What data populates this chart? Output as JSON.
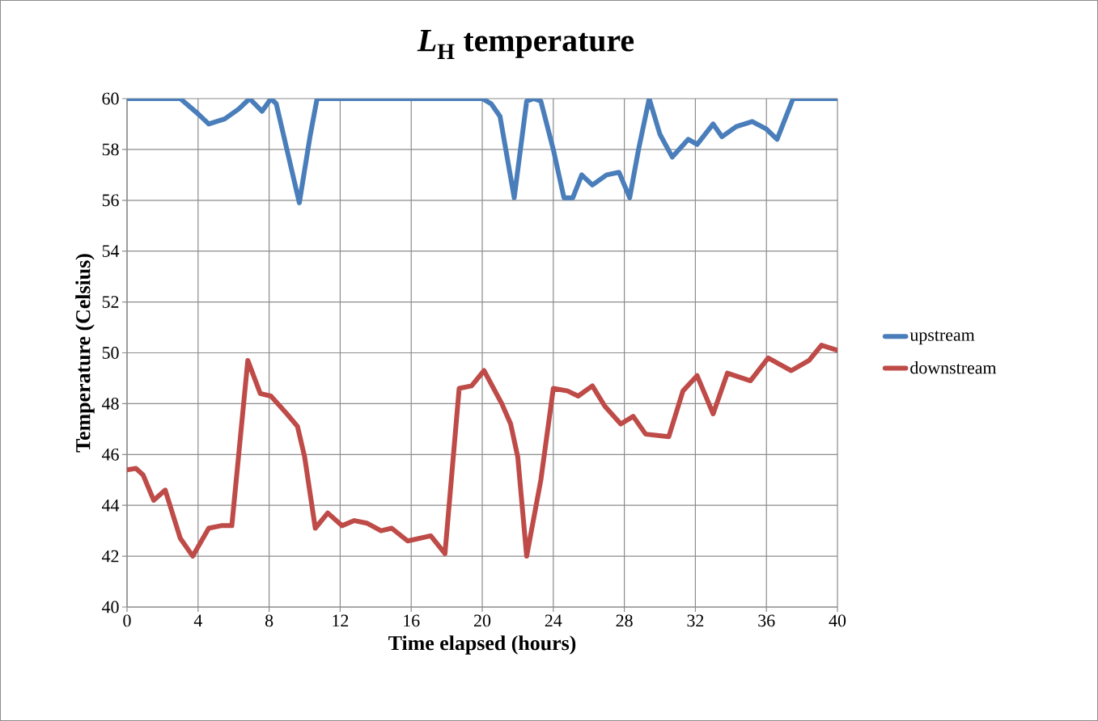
{
  "chart_data": {
    "type": "line",
    "title": "*L*$_{H}$ temperature",
    "xlabel": "Time elapsed (hours)",
    "ylabel": "Temperature (Celsius)",
    "xlim": [
      0,
      40
    ],
    "xticks": [
      0,
      4,
      8,
      12,
      16,
      20,
      24,
      28,
      32,
      36,
      40
    ],
    "ylim": [
      40,
      60
    ],
    "yticks": [
      40,
      42,
      44,
      46,
      48,
      50,
      52,
      54,
      56,
      58,
      60
    ],
    "grid": true,
    "legend": "right",
    "marker": "none",
    "line_style": "solid",
    "series": [
      {
        "name": "upstream",
        "color": "#4a7ebb",
        "x": [
          0,
          2.5,
          3,
          4,
          4.6,
          5.5,
          6.3,
          6.9,
          7.6,
          8.1,
          8.4,
          9,
          9.7,
          10.3,
          10.7,
          11.5,
          20,
          20.5,
          21,
          21.8,
          22.5,
          22.9,
          23.3,
          24,
          24.6,
          25.1,
          25.6,
          26.2,
          27,
          27.7,
          28.3,
          28.8,
          29.4,
          30,
          30.7,
          31.6,
          32.1,
          33,
          33.5,
          34.3,
          35.2,
          36,
          36.6,
          37.5,
          40
        ],
        "values": [
          60,
          60,
          60,
          59.4,
          59,
          59.2,
          59.6,
          60,
          59.5,
          60,
          59.8,
          58,
          55.9,
          58.5,
          60,
          60,
          60,
          59.8,
          59.3,
          56.1,
          59.9,
          60,
          59.9,
          58,
          56.1,
          56.1,
          57,
          56.6,
          57,
          57.1,
          56.1,
          58,
          60,
          58.6,
          57.7,
          58.4,
          58.2,
          59,
          58.5,
          58.9,
          59.1,
          58.8,
          58.4,
          60,
          60
        ]
      },
      {
        "name": "downstream",
        "color": "#be4b48",
        "x": [
          0,
          0.5,
          0.9,
          1.5,
          2.15,
          3,
          3.7,
          4.6,
          5.3,
          5.9,
          6.8,
          7.5,
          8.1,
          9,
          9.6,
          10,
          10.6,
          11.3,
          12.1,
          12.8,
          13.5,
          14.3,
          14.9,
          15.8,
          17.1,
          17.9,
          18.7,
          19.4,
          20.1,
          21.1,
          21.6,
          22,
          22.5,
          23.3,
          24,
          24.8,
          25.4,
          26.2,
          26.9,
          27.8,
          28.5,
          29.2,
          30.5,
          31.3,
          32.1,
          33,
          33.8,
          35.1,
          36.1,
          37.4,
          38.4,
          39.1,
          40
        ],
        "values": [
          45.4,
          45.45,
          45.2,
          44.2,
          44.6,
          42.7,
          42,
          43.1,
          43.2,
          43.2,
          49.7,
          48.4,
          48.3,
          47.6,
          47.1,
          45.9,
          43.1,
          43.7,
          43.2,
          43.4,
          43.3,
          43,
          43.1,
          42.6,
          42.8,
          42.1,
          48.6,
          48.7,
          49.3,
          48,
          47.2,
          45.9,
          42,
          45,
          48.6,
          48.5,
          48.3,
          48.7,
          47.9,
          47.2,
          47.5,
          46.8,
          46.7,
          48.5,
          49.1,
          47.6,
          49.2,
          48.9,
          49.8,
          49.3,
          49.7,
          50.3,
          50.1
        ]
      }
    ]
  }
}
